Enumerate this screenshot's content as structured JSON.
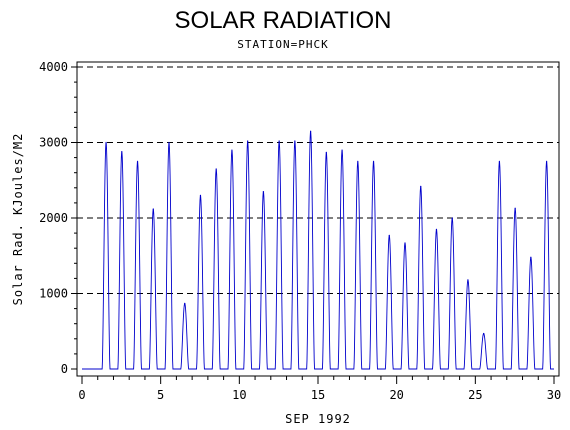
{
  "chart_data": {
    "type": "line",
    "title": "SOLAR RADIATION",
    "subtitle": "STATION=PHCK",
    "xlabel": "SEP 1992",
    "ylabel": "Solar Rad. KJoules/M2",
    "xlim": [
      0,
      30
    ],
    "ylim": [
      0,
      4000
    ],
    "x_ticks": [
      0,
      5,
      10,
      15,
      20,
      25,
      30
    ],
    "y_ticks": [
      0,
      1000,
      2000,
      3000,
      4000
    ],
    "grid": "horizontal dashed",
    "series_color": "#0000cc",
    "daily_peaks": [
      {
        "day": 1,
        "peak": 3000
      },
      {
        "day": 2,
        "peak": 2880
      },
      {
        "day": 3,
        "peak": 2750
      },
      {
        "day": 4,
        "peak": 2120
      },
      {
        "day": 5,
        "peak": 3000
      },
      {
        "day": 6,
        "peak": 870
      },
      {
        "day": 7,
        "peak": 2300
      },
      {
        "day": 8,
        "peak": 2650
      },
      {
        "day": 9,
        "peak": 2900
      },
      {
        "day": 10,
        "peak": 3020
      },
      {
        "day": 11,
        "peak": 2350
      },
      {
        "day": 12,
        "peak": 3020
      },
      {
        "day": 13,
        "peak": 3020
      },
      {
        "day": 14,
        "peak": 3150
      },
      {
        "day": 15,
        "peak": 2870
      },
      {
        "day": 16,
        "peak": 2900
      },
      {
        "day": 17,
        "peak": 2750
      },
      {
        "day": 18,
        "peak": 2750
      },
      {
        "day": 19,
        "peak": 1770
      },
      {
        "day": 20,
        "peak": 1670
      },
      {
        "day": 21,
        "peak": 2420
      },
      {
        "day": 22,
        "peak": 1850
      },
      {
        "day": 23,
        "peak": 2000
      },
      {
        "day": 24,
        "peak": 1180
      },
      {
        "day": 25,
        "peak": 470
      },
      {
        "day": 26,
        "peak": 2750
      },
      {
        "day": 27,
        "peak": 2130
      },
      {
        "day": 28,
        "peak": 1480
      },
      {
        "day": 29,
        "peak": 2750
      }
    ]
  }
}
